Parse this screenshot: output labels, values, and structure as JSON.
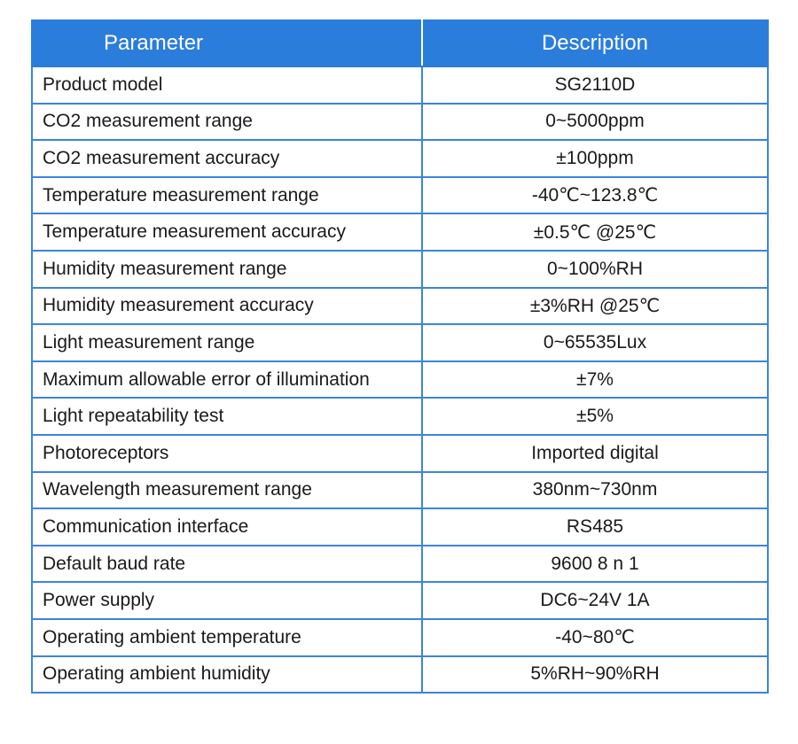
{
  "header": {
    "parameter": "Parameter",
    "description": "Description"
  },
  "colors": {
    "header_bg": "#2b7ddc",
    "border": "#3b85dc",
    "header_text": "#ffffff",
    "cell_text": "#1a1a1a"
  },
  "rows": [
    {
      "parameter": "Product model",
      "description": "SG2110D"
    },
    {
      "parameter": "CO2 measurement range",
      "description": "0~5000ppm"
    },
    {
      "parameter": "CO2 measurement accuracy",
      "description": "±100ppm"
    },
    {
      "parameter": "Temperature measurement range",
      "description": "-40℃~123.8℃"
    },
    {
      "parameter": "Temperature measurement accuracy",
      "description": "±0.5℃ @25℃"
    },
    {
      "parameter": "Humidity measurement range",
      "description": "0~100%RH"
    },
    {
      "parameter": "Humidity measurement accuracy",
      "description": "±3%RH @25℃"
    },
    {
      "parameter": "Light measurement range",
      "description": "0~65535Lux"
    },
    {
      "parameter": "Maximum allowable error of illumination",
      "description": "±7%"
    },
    {
      "parameter": "Light repeatability test",
      "description": "±5%"
    },
    {
      "parameter": "Photoreceptors",
      "description": "Imported digital"
    },
    {
      "parameter": "Wavelength measurement range",
      "description": "380nm~730nm"
    },
    {
      "parameter": "Communication interface",
      "description": "RS485"
    },
    {
      "parameter": "Default baud rate",
      "description": "9600 8 n 1"
    },
    {
      "parameter": "Power supply",
      "description": "DC6~24V 1A"
    },
    {
      "parameter": "Operating ambient temperature",
      "description": "-40~80℃"
    },
    {
      "parameter": "Operating ambient humidity",
      "description": "5%RH~90%RH"
    }
  ]
}
